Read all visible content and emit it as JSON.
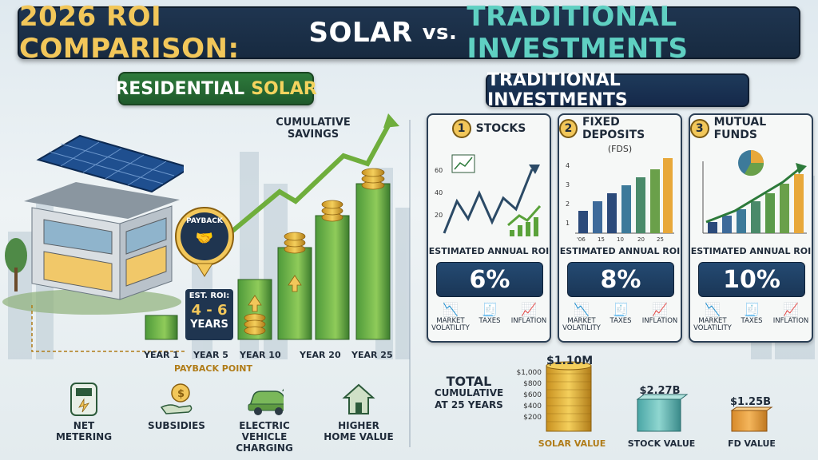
{
  "title": {
    "part1": "2026 ROI COMPARISON:",
    "part2": "SOLAR",
    "vs": "vs.",
    "part3": "TRADITIONAL INVESTMENTS"
  },
  "residential": {
    "label_prefix": "RESIDENTIAL",
    "label_solar": "SOLAR",
    "cumulative_line1": "CUMULATIVE",
    "cumulative_line2": "SAVINGS",
    "payback_badge": "PAYBACK",
    "est_roi_line1": "EST. ROI:",
    "est_roi_line2": "4 - 6",
    "est_roi_line3": "YEARS",
    "payback_point": "PAYBACK POINT",
    "years": [
      "YEAR 1",
      "YEAR 5",
      "YEAR 10",
      "YEAR 20",
      "YEAR 25"
    ],
    "features": [
      {
        "l1": "NET",
        "l2": "METERING"
      },
      {
        "l1": "SUBSIDIES",
        "l2": ""
      },
      {
        "l1": "ELECTRIC VEHICLE",
        "l2": "CHARGING"
      },
      {
        "l1": "HIGHER",
        "l2": "HOME VALUE"
      }
    ]
  },
  "traditional": {
    "label": "TRADITIONAL INVESTMENTS",
    "roi_label": "ESTIMATED ANNUAL ROI",
    "risks": {
      "r1a": "MARKET",
      "r1b": "VOLATILITY",
      "r2": "TAXES",
      "r3": "INFLATION"
    },
    "cards": [
      {
        "num": "1",
        "title": "STOCKS",
        "sub": "",
        "roi": "6%",
        "yticks": [
          "60",
          "40",
          "20"
        ]
      },
      {
        "num": "2",
        "title": "FIXED DEPOSITS",
        "sub": "(FDS)",
        "roi": "8%",
        "yticks": [
          "4",
          "3",
          "2",
          "1"
        ],
        "xticks": [
          "'06",
          "15",
          "10",
          "20",
          "25"
        ]
      },
      {
        "num": "3",
        "title": "MUTUAL FUNDS",
        "sub": "",
        "roi": "10%"
      }
    ]
  },
  "totals": {
    "label_big": "TOTAL",
    "label_l2": "CUMULATIVE",
    "label_l3": "AT 25 YEARS",
    "yticks": [
      "$1,000",
      "$800",
      "$600",
      "$400",
      "$200"
    ],
    "solar_amount": "$1.10M",
    "stock_amount": "$2.27B",
    "fd_amount": "$1.25B",
    "solar_label": "SOLAR VALUE",
    "stock_label": "STOCK VALUE",
    "fd_label": "FD VALUE"
  }
}
